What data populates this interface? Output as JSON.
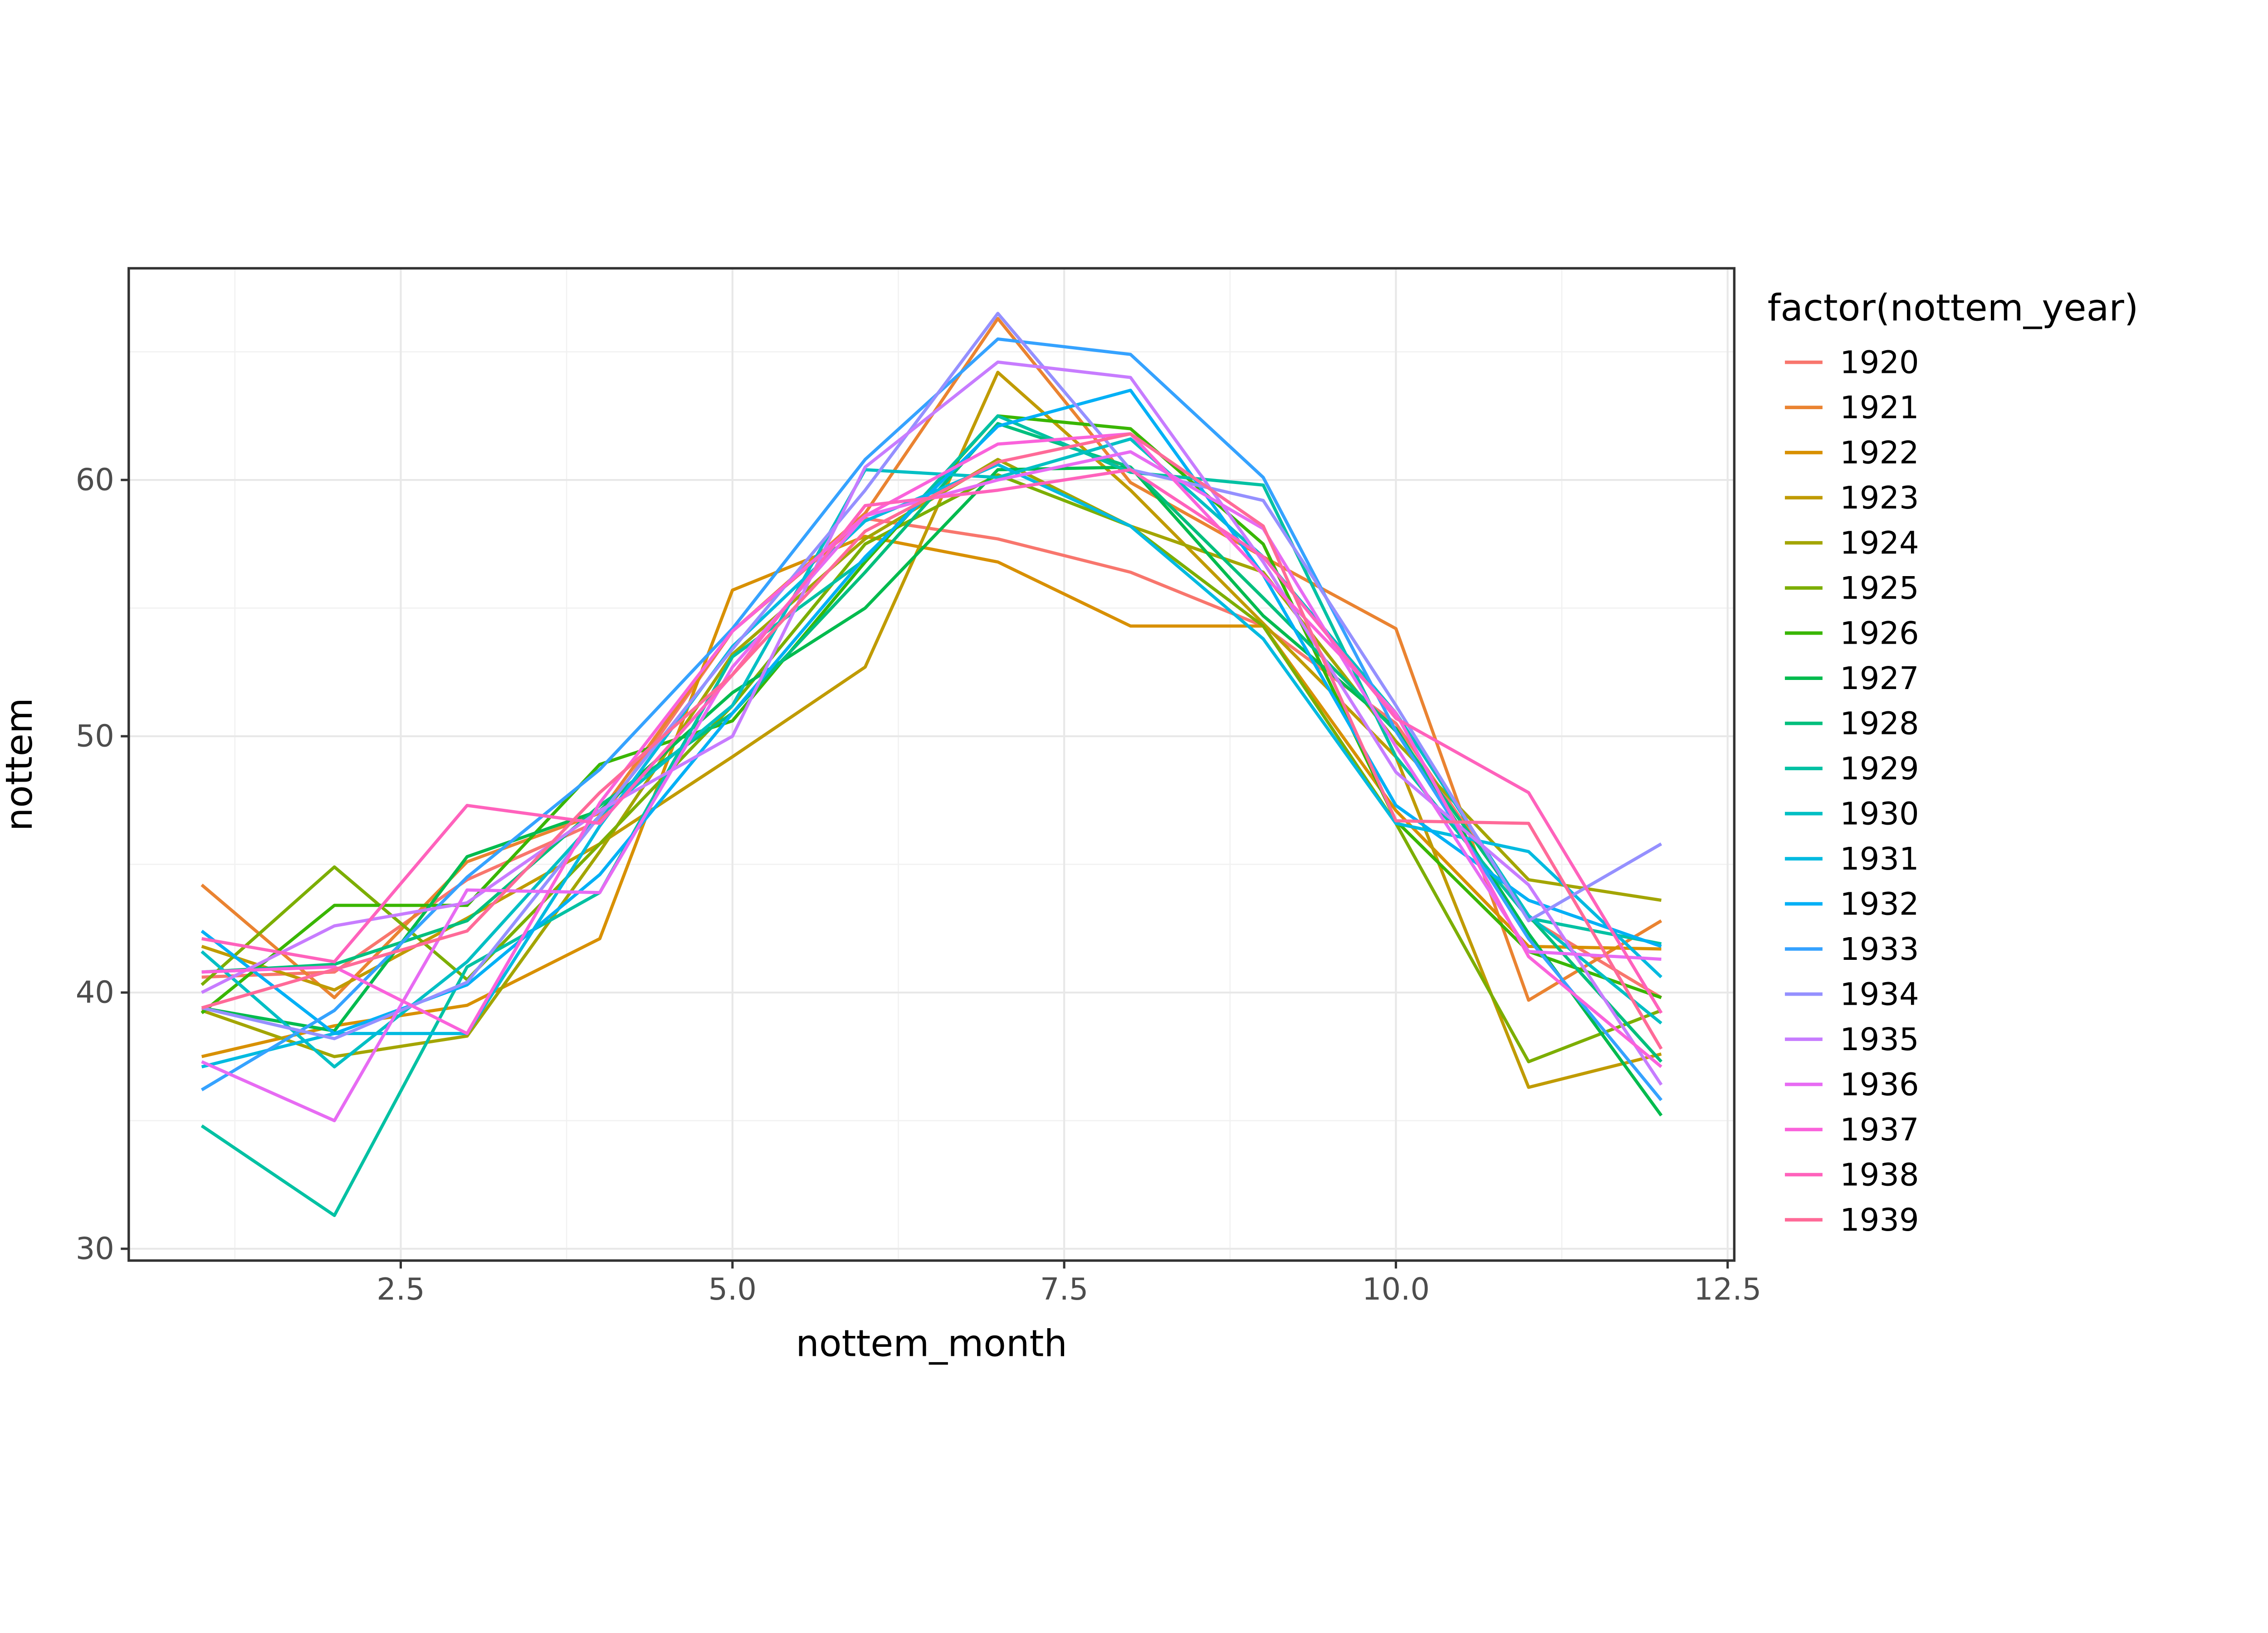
{
  "chart_data": {
    "type": "line",
    "title": "",
    "xlabel": "nottem_month",
    "ylabel": "nottem",
    "legend_title": "factor(nottem_year)",
    "legend_position": "right",
    "grid": true,
    "x": [
      1,
      2,
      3,
      4,
      5,
      6,
      7,
      8,
      9,
      10,
      11,
      12
    ],
    "xlim": [
      0.45,
      12.55
    ],
    "ylim": [
      29.54,
      68.26
    ],
    "x_ticks": {
      "values": [
        2.5,
        5.0,
        7.5,
        10.0,
        12.5
      ],
      "labels": [
        "2.5",
        "5.0",
        "7.5",
        "10.0",
        "12.5"
      ]
    },
    "y_ticks": {
      "values": [
        30,
        40,
        50,
        60
      ],
      "labels": [
        "30",
        "40",
        "50",
        "60"
      ]
    },
    "x_minor": [
      1.25,
      3.75,
      6.25,
      8.75,
      11.25
    ],
    "y_minor": [
      35,
      45,
      55,
      65
    ],
    "series": [
      {
        "name": "1920",
        "color": "#F8766D",
        "values": [
          40.6,
          40.8,
          44.4,
          46.7,
          54.1,
          58.5,
          57.7,
          56.4,
          54.3,
          50.5,
          42.9,
          39.8
        ]
      },
      {
        "name": "1921",
        "color": "#EA8331",
        "values": [
          44.2,
          39.8,
          45.1,
          47.0,
          54.1,
          58.7,
          66.3,
          59.9,
          57.0,
          54.2,
          39.7,
          42.8
        ]
      },
      {
        "name": "1922",
        "color": "#D89000",
        "values": [
          37.5,
          38.7,
          39.5,
          42.1,
          55.7,
          57.8,
          56.8,
          54.3,
          54.3,
          47.1,
          41.8,
          41.7
        ]
      },
      {
        "name": "1923",
        "color": "#C09B00",
        "values": [
          41.8,
          40.1,
          42.9,
          45.8,
          49.2,
          52.7,
          64.2,
          59.6,
          54.4,
          49.2,
          36.3,
          37.6
        ]
      },
      {
        "name": "1924",
        "color": "#A3A500",
        "values": [
          39.3,
          37.5,
          38.3,
          45.5,
          53.2,
          57.7,
          60.8,
          58.2,
          56.4,
          49.8,
          44.4,
          43.6
        ]
      },
      {
        "name": "1925",
        "color": "#7CAE00",
        "values": [
          40.3,
          44.9,
          40.5,
          45.8,
          51.2,
          57.5,
          60.2,
          58.2,
          54.3,
          46.6,
          37.3,
          39.3
        ]
      },
      {
        "name": "1926",
        "color": "#39B600",
        "values": [
          39.2,
          43.4,
          43.4,
          48.9,
          50.6,
          56.8,
          62.5,
          62.0,
          57.5,
          46.7,
          41.6,
          39.8
        ]
      },
      {
        "name": "1927",
        "color": "#00BB4E",
        "values": [
          39.4,
          38.5,
          45.3,
          47.1,
          51.7,
          55.0,
          60.4,
          60.5,
          54.7,
          50.3,
          42.3,
          35.2
        ]
      },
      {
        "name": "1928",
        "color": "#00BF7D",
        "values": [
          40.8,
          41.1,
          42.8,
          47.3,
          50.9,
          56.4,
          62.2,
          60.5,
          55.4,
          50.2,
          43.0,
          37.3
        ]
      },
      {
        "name": "1929",
        "color": "#00C1A3",
        "values": [
          34.8,
          31.3,
          41.0,
          43.9,
          53.1,
          56.9,
          62.5,
          60.3,
          59.8,
          49.2,
          42.9,
          41.9
        ]
      },
      {
        "name": "1930",
        "color": "#00BFC4",
        "values": [
          41.6,
          37.1,
          41.2,
          46.9,
          51.2,
          60.4,
          60.1,
          61.6,
          57.0,
          50.9,
          43.0,
          38.8
        ]
      },
      {
        "name": "1931",
        "color": "#00BAE0",
        "values": [
          37.1,
          38.4,
          38.4,
          46.5,
          53.5,
          58.4,
          60.6,
          58.2,
          53.8,
          46.6,
          45.5,
          40.6
        ]
      },
      {
        "name": "1932",
        "color": "#00B0F6",
        "values": [
          42.4,
          38.4,
          40.3,
          44.6,
          50.9,
          57.0,
          62.1,
          63.5,
          56.3,
          47.3,
          43.6,
          41.8
        ]
      },
      {
        "name": "1933",
        "color": "#35A2FF",
        "values": [
          36.2,
          39.3,
          44.5,
          48.7,
          54.2,
          60.8,
          65.5,
          64.9,
          60.1,
          50.2,
          42.1,
          35.8
        ]
      },
      {
        "name": "1934",
        "color": "#9590FF",
        "values": [
          39.4,
          38.2,
          40.4,
          46.9,
          53.4,
          59.6,
          66.5,
          60.4,
          59.2,
          51.2,
          42.8,
          45.8
        ]
      },
      {
        "name": "1935",
        "color": "#C77CFF",
        "values": [
          40.0,
          42.6,
          43.5,
          47.1,
          50.0,
          60.5,
          64.6,
          64.0,
          56.8,
          48.6,
          44.2,
          36.4
        ]
      },
      {
        "name": "1936",
        "color": "#E76BF3",
        "values": [
          37.3,
          35.0,
          44.0,
          43.9,
          52.7,
          58.6,
          60.0,
          61.1,
          58.1,
          49.6,
          41.6,
          41.3
        ]
      },
      {
        "name": "1937",
        "color": "#FA62DB",
        "values": [
          40.8,
          41.0,
          38.4,
          47.4,
          54.1,
          58.6,
          61.4,
          61.8,
          56.3,
          50.9,
          41.4,
          37.1
        ]
      },
      {
        "name": "1938",
        "color": "#FF62BC",
        "values": [
          42.1,
          41.2,
          47.3,
          46.6,
          52.4,
          59.0,
          59.6,
          60.4,
          57.0,
          50.7,
          47.8,
          39.2
        ]
      },
      {
        "name": "1939",
        "color": "#FF6A98",
        "values": [
          39.4,
          40.9,
          42.4,
          47.8,
          52.4,
          58.0,
          60.7,
          61.8,
          58.2,
          46.7,
          46.6,
          37.8
        ]
      }
    ]
  },
  "theme": {
    "background": "#FFFFFF",
    "panel_background": "#FFFFFF",
    "panel_border": "#333333",
    "grid_major": "#E8E8E8",
    "grid_minor": "#F1F1F1",
    "tick_color": "#333333",
    "axis_text_color": "#4D4D4D",
    "title_color": "#000000"
  }
}
